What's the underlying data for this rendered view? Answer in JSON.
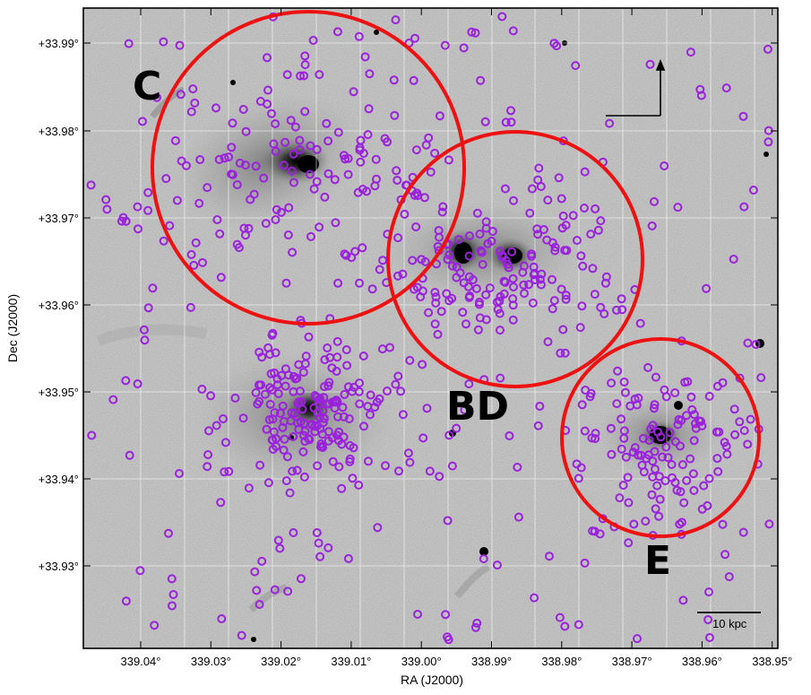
{
  "axes": {
    "xlabel": "RA (J2000)",
    "ylabel": "Dec (J2000)",
    "x_ticks": [
      "339.04°",
      "339.03°",
      "339.02°",
      "339.01°",
      "339.00°",
      "338.99°",
      "338.98°",
      "338.97°",
      "338.96°",
      "338.95°"
    ],
    "y_ticks": [
      "+33.99°",
      "+33.98°",
      "+33.97°",
      "+33.96°",
      "+33.95°",
      "+33.94°",
      "+33.93°"
    ]
  },
  "group_labels": {
    "c": "C",
    "bd": "BD",
    "e": "E"
  },
  "scale_bar": {
    "label": "10 kpc"
  },
  "colors": {
    "region_circle": "#ee1111",
    "source_marker": "#9a22dd",
    "frame": "#000000",
    "sky": "#e4e4e4"
  },
  "image_content": "inverted grayscale sky image of interacting galaxy group with red region circles and purple source markers"
}
